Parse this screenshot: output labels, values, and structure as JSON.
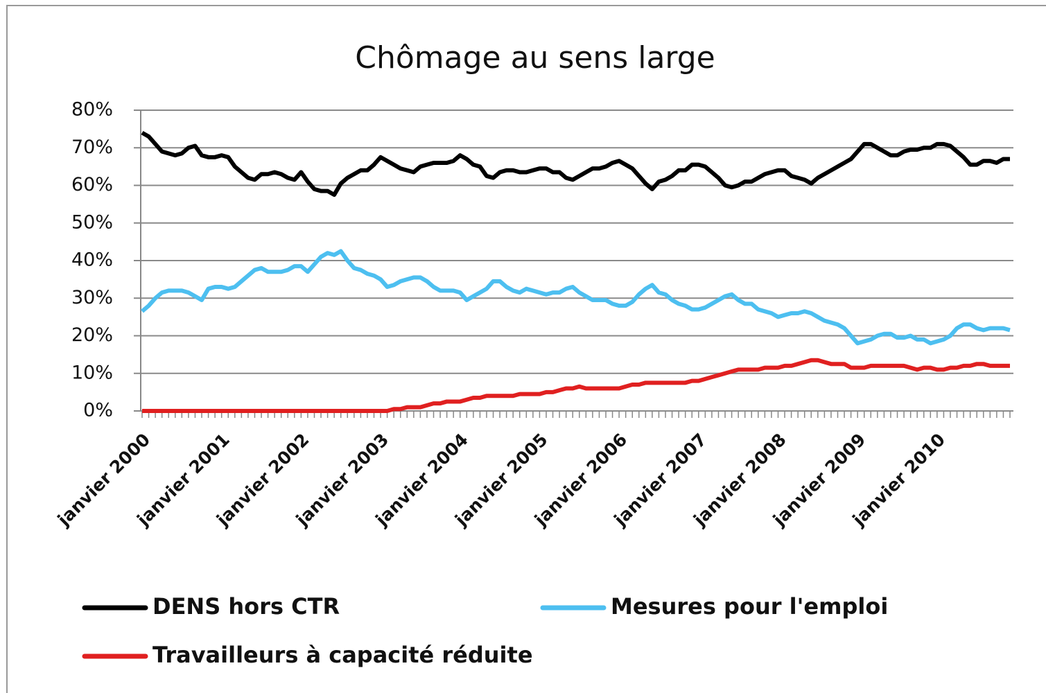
{
  "chart_data": {
    "type": "line",
    "title": "Chômage au sens large",
    "categories": [
      "janvier 2000",
      null,
      null,
      null,
      null,
      null,
      null,
      null,
      null,
      null,
      null,
      null,
      "janvier 2001",
      null,
      null,
      null,
      null,
      null,
      null,
      null,
      null,
      null,
      null,
      null,
      "janvier 2002",
      null,
      null,
      null,
      null,
      null,
      null,
      null,
      null,
      null,
      null,
      null,
      "janvier 2003",
      null,
      null,
      null,
      null,
      null,
      null,
      null,
      null,
      null,
      null,
      null,
      "janvier 2004",
      null,
      null,
      null,
      null,
      null,
      null,
      null,
      null,
      null,
      null,
      null,
      "janvier 2005",
      null,
      null,
      null,
      null,
      null,
      null,
      null,
      null,
      null,
      null,
      null,
      "janvier 2006",
      null,
      null,
      null,
      null,
      null,
      null,
      null,
      null,
      null,
      null,
      null,
      "janvier 2007",
      null,
      null,
      null,
      null,
      null,
      null,
      null,
      null,
      null,
      null,
      null,
      "janvier 2008",
      null,
      null,
      null,
      null,
      null,
      null,
      null,
      null,
      null,
      null,
      null,
      "janvier 2009",
      null,
      null,
      null,
      null,
      null,
      null,
      null,
      null,
      null,
      null,
      null,
      "janvier 2010",
      null,
      null,
      null,
      null,
      null,
      null,
      null,
      null,
      null,
      null,
      null
    ],
    "series": [
      {
        "name": "DENS hors CTR",
        "color": "#000000",
        "values": [
          74,
          73,
          71,
          69,
          68.5,
          68,
          68.5,
          70,
          70.5,
          68,
          67.5,
          67.5,
          68,
          67.5,
          65,
          63.5,
          62,
          61.5,
          63,
          63,
          63.5,
          63,
          62,
          61.5,
          63.5,
          61,
          59,
          58.5,
          58.5,
          57.5,
          60.5,
          62,
          63,
          64,
          64,
          65.5,
          67.5,
          66.5,
          65.5,
          64.5,
          64,
          63.5,
          65,
          65.5,
          66,
          66,
          66,
          66.5,
          68,
          67,
          65.5,
          65,
          62.5,
          62,
          63.5,
          64,
          64,
          63.5,
          63.5,
          64,
          64.5,
          64.5,
          63.5,
          63.5,
          62,
          61.5,
          62.5,
          63.5,
          64.5,
          64.5,
          65,
          66,
          66.5,
          65.5,
          64.5,
          62.5,
          60.5,
          59,
          61,
          61.5,
          62.5,
          64,
          64,
          65.5,
          65.5,
          65,
          63.5,
          62,
          60,
          59.5,
          60,
          61,
          61,
          62,
          63,
          63.5,
          64,
          64,
          62.5,
          62,
          61.5,
          60.5,
          62,
          63,
          64,
          65,
          66,
          67,
          69,
          71,
          71,
          70,
          69,
          68,
          68,
          69,
          69.5,
          69.5,
          70,
          70,
          71,
          71,
          70.5,
          69,
          67.5,
          65.5,
          65.5,
          66.5,
          66.5,
          66,
          67,
          67
        ]
      },
      {
        "name": "Mesures pour l'emploi",
        "color": "#4dbff0",
        "values": [
          26.5,
          28,
          30,
          31.5,
          32,
          32,
          32,
          31.5,
          30.5,
          29.5,
          32.5,
          33,
          33,
          32.5,
          33,
          34.5,
          36,
          37.5,
          38,
          37,
          37,
          37,
          37.5,
          38.5,
          38.5,
          37,
          39,
          41,
          42,
          41.5,
          42.5,
          40,
          38,
          37.5,
          36.5,
          36,
          35,
          33,
          33.5,
          34.5,
          35,
          35.5,
          35.5,
          34.5,
          33,
          32,
          32,
          32,
          31.5,
          29.5,
          30.5,
          31.5,
          32.5,
          34.5,
          34.5,
          33,
          32,
          31.5,
          32.5,
          32,
          31.5,
          31,
          31.5,
          31.5,
          32.5,
          33,
          31.5,
          30.5,
          29.5,
          29.5,
          29.5,
          28.5,
          28,
          28,
          29,
          31,
          32.5,
          33.5,
          31.5,
          31,
          29.5,
          28.5,
          28,
          27,
          27,
          27.5,
          28.5,
          29.5,
          30.5,
          31,
          29.5,
          28.5,
          28.5,
          27,
          26.5,
          26,
          25,
          25.5,
          26,
          26,
          26.5,
          26,
          25,
          24,
          23.5,
          23,
          22,
          20,
          18,
          18.5,
          19,
          20,
          20.5,
          20.5,
          19.5,
          19.5,
          20,
          19,
          19,
          18,
          18.5,
          19,
          20,
          22,
          23,
          23,
          22,
          21.5,
          22,
          22,
          22,
          21.5
        ]
      },
      {
        "name": "Travailleurs à capacité réduite",
        "color": "#e02020",
        "values": [
          0,
          0,
          0,
          0,
          0,
          0,
          0,
          0,
          0,
          0,
          0,
          0,
          0,
          0,
          0,
          0,
          0,
          0,
          0,
          0,
          0,
          0,
          0,
          0,
          0,
          0,
          0,
          0,
          0,
          0,
          0,
          0,
          0,
          0,
          0,
          0,
          0,
          0,
          0.5,
          0.5,
          1,
          1,
          1,
          1.5,
          2,
          2,
          2.5,
          2.5,
          2.5,
          3,
          3.5,
          3.5,
          4,
          4,
          4,
          4,
          4,
          4.5,
          4.5,
          4.5,
          4.5,
          5,
          5,
          5.5,
          6,
          6,
          6.5,
          6,
          6,
          6,
          6,
          6,
          6,
          6.5,
          7,
          7,
          7.5,
          7.5,
          7.5,
          7.5,
          7.5,
          7.5,
          7.5,
          8,
          8,
          8.5,
          9,
          9.5,
          10,
          10.5,
          11,
          11,
          11,
          11,
          11.5,
          11.5,
          11.5,
          12,
          12,
          12.5,
          13,
          13.5,
          13.5,
          13,
          12.5,
          12.5,
          12.5,
          11.5,
          11.5,
          11.5,
          12,
          12,
          12,
          12,
          12,
          12,
          11.5,
          11,
          11.5,
          11.5,
          11,
          11,
          11.5,
          11.5,
          12,
          12,
          12.5,
          12.5,
          12,
          12,
          12,
          12
        ]
      }
    ],
    "ylim": [
      0,
      80
    ],
    "yticks": [
      {
        "value": 0,
        "label": "0%"
      },
      {
        "value": 10,
        "label": "10%"
      },
      {
        "value": 20,
        "label": "20%"
      },
      {
        "value": 30,
        "label": "30%"
      },
      {
        "value": 40,
        "label": "40%"
      },
      {
        "value": 50,
        "label": "50%"
      },
      {
        "value": 60,
        "label": "60%"
      },
      {
        "value": 70,
        "label": "70%"
      },
      {
        "value": 80,
        "label": "80%"
      }
    ],
    "grid": true
  }
}
